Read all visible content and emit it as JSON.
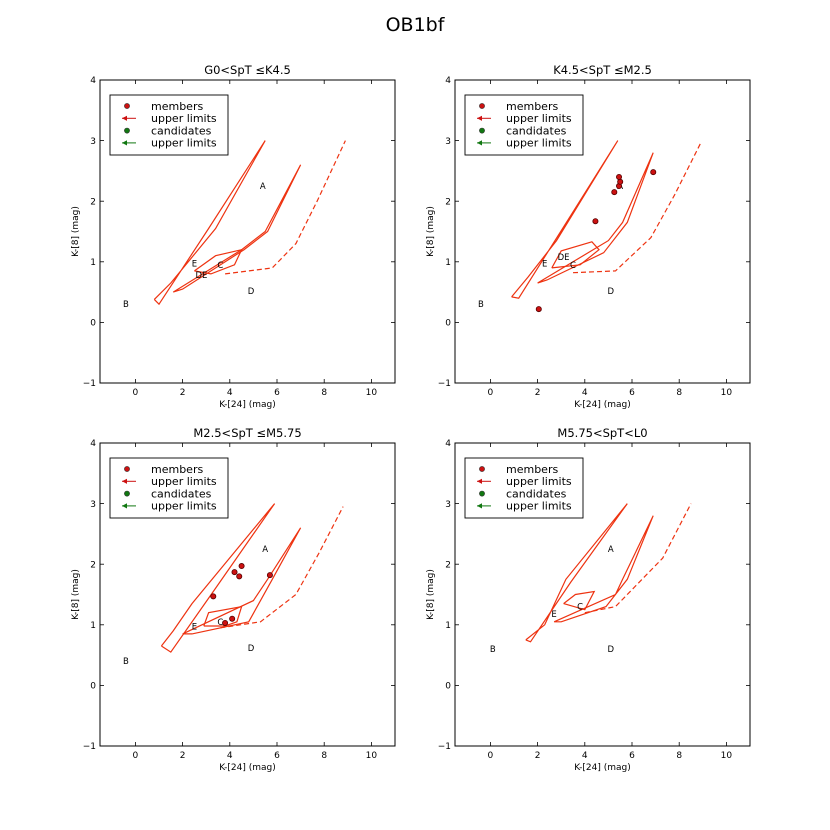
{
  "figure": {
    "suptitle": "OB1bf"
  },
  "colors": {
    "member": "#cc1111",
    "member_edge": "#550000",
    "model": "#ee3311",
    "candidate": "#117711",
    "axis": "#000000"
  },
  "legend": [
    {
      "label": "members",
      "marker": "dot",
      "color": "#cc1111"
    },
    {
      "label": "upper limits",
      "marker": "arrow",
      "color": "#cc1111"
    },
    {
      "label": "candidates",
      "marker": "dot",
      "color": "#117711"
    },
    {
      "label": "upper limits",
      "marker": "arrow",
      "color": "#117711"
    }
  ],
  "chart_data": [
    {
      "type": "scatter",
      "title": "G0<SpT ≤K4.5",
      "xlabel": "K-[24] (mag)",
      "ylabel": "K-[8] (mag)",
      "xlim": [
        -1.5,
        11
      ],
      "ylim": [
        -1,
        4
      ],
      "xticks": [
        0,
        2,
        4,
        6,
        8,
        10
      ],
      "yticks": [
        -1,
        0,
        1,
        2,
        3,
        4
      ],
      "legend_position": "upper left",
      "members": [],
      "regions": [
        {
          "label": "A",
          "x": 5.4,
          "y": 2.25
        },
        {
          "label": "B",
          "x": -0.4,
          "y": 0.3
        },
        {
          "label": "C",
          "x": 3.6,
          "y": 0.95
        },
        {
          "label": "D",
          "x": 4.9,
          "y": 0.52
        },
        {
          "label": "E",
          "x": 2.5,
          "y": 0.97
        },
        {
          "label": "DE",
          "x": 2.8,
          "y": 0.78
        }
      ],
      "models": {
        "thick_disk": [
          [
            0.8,
            0.38
          ],
          [
            1.5,
            0.65
          ],
          [
            3.4,
            1.55
          ],
          [
            5.5,
            3.0
          ],
          [
            3.1,
            1.55
          ],
          [
            1.0,
            0.3
          ],
          [
            0.8,
            0.38
          ]
        ],
        "thin_disk": [
          [
            1.6,
            0.5
          ],
          [
            4.5,
            1.2
          ],
          [
            5.5,
            1.5
          ],
          [
            7.0,
            2.6
          ],
          [
            5.6,
            1.5
          ],
          [
            4.6,
            1.2
          ],
          [
            2.0,
            0.55
          ],
          [
            1.6,
            0.5
          ]
        ],
        "transition": [
          [
            2.5,
            0.85
          ],
          [
            3.4,
            1.1
          ],
          [
            4.5,
            1.2
          ],
          [
            4.2,
            0.95
          ],
          [
            3.2,
            0.8
          ],
          [
            2.5,
            0.85
          ]
        ],
        "debris_dashed": [
          [
            3.8,
            0.8
          ],
          [
            5.8,
            0.9
          ],
          [
            6.8,
            1.3
          ],
          [
            7.7,
            2.0
          ],
          [
            8.9,
            3.0
          ]
        ]
      }
    },
    {
      "type": "scatter",
      "title": "K4.5<SpT ≤M2.5",
      "xlabel": "K-[24] (mag)",
      "ylabel": "K-[8] (mag)",
      "xlim": [
        -1.5,
        11
      ],
      "ylim": [
        -1,
        4
      ],
      "xticks": [
        0,
        2,
        4,
        6,
        8,
        10
      ],
      "yticks": [
        -1,
        0,
        1,
        2,
        3,
        4
      ],
      "legend_position": "upper left",
      "members": [
        {
          "x": 2.05,
          "y": 0.22
        },
        {
          "x": 4.45,
          "y": 1.67
        },
        {
          "x": 5.25,
          "y": 2.15
        },
        {
          "x": 5.45,
          "y": 2.25
        },
        {
          "x": 5.5,
          "y": 2.32
        },
        {
          "x": 5.45,
          "y": 2.4
        },
        {
          "x": 6.9,
          "y": 2.48
        }
      ],
      "regions": [
        {
          "label": "A",
          "x": 5.5,
          "y": 2.25
        },
        {
          "label": "B",
          "x": -0.4,
          "y": 0.3
        },
        {
          "label": "C",
          "x": 3.5,
          "y": 0.95
        },
        {
          "label": "D",
          "x": 5.1,
          "y": 0.52
        },
        {
          "label": "E",
          "x": 2.3,
          "y": 0.97
        },
        {
          "label": "DE",
          "x": 3.1,
          "y": 1.08
        }
      ],
      "models": {
        "thick_disk": [
          [
            0.9,
            0.42
          ],
          [
            1.6,
            0.75
          ],
          [
            2.8,
            1.35
          ],
          [
            5.4,
            3.0
          ],
          [
            3.3,
            1.7
          ],
          [
            1.2,
            0.4
          ],
          [
            0.9,
            0.42
          ]
        ],
        "thin_disk": [
          [
            2.0,
            0.65
          ],
          [
            5.0,
            1.35
          ],
          [
            5.6,
            1.65
          ],
          [
            6.9,
            2.8
          ],
          [
            5.8,
            1.65
          ],
          [
            4.8,
            1.15
          ],
          [
            2.4,
            0.7
          ],
          [
            2.0,
            0.65
          ]
        ],
        "transition": [
          [
            2.6,
            0.9
          ],
          [
            3.0,
            1.18
          ],
          [
            4.3,
            1.33
          ],
          [
            4.6,
            1.2
          ],
          [
            3.8,
            0.95
          ],
          [
            2.6,
            0.9
          ]
        ],
        "debris_dashed": [
          [
            3.5,
            0.82
          ],
          [
            5.3,
            0.85
          ],
          [
            6.8,
            1.4
          ],
          [
            7.8,
            2.1
          ],
          [
            8.9,
            2.95
          ]
        ]
      }
    },
    {
      "type": "scatter",
      "title": "M2.5<SpT ≤M5.75",
      "xlabel": "K-[24] (mag)",
      "ylabel": "K-[8] (mag)",
      "xlim": [
        -1.5,
        11
      ],
      "ylim": [
        -1,
        4
      ],
      "xticks": [
        0,
        2,
        4,
        6,
        8,
        10
      ],
      "yticks": [
        -1,
        0,
        1,
        2,
        3,
        4
      ],
      "legend_position": "upper left",
      "members": [
        {
          "x": 3.3,
          "y": 1.47
        },
        {
          "x": 3.8,
          "y": 1.03
        },
        {
          "x": 4.1,
          "y": 1.1
        },
        {
          "x": 4.2,
          "y": 1.87
        },
        {
          "x": 4.4,
          "y": 1.8
        },
        {
          "x": 4.5,
          "y": 1.97
        },
        {
          "x": 5.7,
          "y": 1.82
        }
      ],
      "regions": [
        {
          "label": "A",
          "x": 5.5,
          "y": 2.25
        },
        {
          "label": "B",
          "x": -0.4,
          "y": 0.4
        },
        {
          "label": "C",
          "x": 3.6,
          "y": 1.05
        },
        {
          "label": "D",
          "x": 4.9,
          "y": 0.62
        },
        {
          "label": "E",
          "x": 2.5,
          "y": 0.97
        }
      ],
      "models": {
        "thick_disk": [
          [
            1.1,
            0.65
          ],
          [
            1.6,
            0.9
          ],
          [
            2.4,
            1.35
          ],
          [
            5.9,
            3.0
          ],
          [
            3.3,
            1.55
          ],
          [
            1.5,
            0.55
          ],
          [
            1.1,
            0.65
          ]
        ],
        "thin_disk": [
          [
            2.0,
            0.85
          ],
          [
            5.0,
            1.4
          ],
          [
            5.6,
            1.75
          ],
          [
            7.0,
            2.6
          ],
          [
            5.8,
            1.75
          ],
          [
            4.8,
            1.05
          ],
          [
            2.4,
            0.85
          ],
          [
            2.0,
            0.85
          ]
        ],
        "transition": [
          [
            2.9,
            0.98
          ],
          [
            3.1,
            1.2
          ],
          [
            4.5,
            1.3
          ],
          [
            4.3,
            1.05
          ],
          [
            3.8,
            0.98
          ],
          [
            2.9,
            0.98
          ]
        ],
        "debris_dashed": [
          [
            3.6,
            0.95
          ],
          [
            5.3,
            1.05
          ],
          [
            6.8,
            1.5
          ],
          [
            7.8,
            2.2
          ],
          [
            8.8,
            2.95
          ]
        ]
      }
    },
    {
      "type": "scatter",
      "title": "M5.75<SpT<L0",
      "xlabel": "K-[24] (mag)",
      "ylabel": "K-[8] (mag)",
      "xlim": [
        -1.5,
        11
      ],
      "ylim": [
        -1,
        4
      ],
      "xticks": [
        0,
        2,
        4,
        6,
        8,
        10
      ],
      "yticks": [
        -1,
        0,
        1,
        2,
        3,
        4
      ],
      "legend_position": "upper left",
      "members": [],
      "regions": [
        {
          "label": "A",
          "x": 5.1,
          "y": 2.25
        },
        {
          "label": "B",
          "x": 0.1,
          "y": 0.6
        },
        {
          "label": "C",
          "x": 3.8,
          "y": 1.3
        },
        {
          "label": "D",
          "x": 5.1,
          "y": 0.6
        },
        {
          "label": "E",
          "x": 2.7,
          "y": 1.18
        }
      ],
      "models": {
        "thick_disk": [
          [
            1.5,
            0.75
          ],
          [
            2.3,
            1.0
          ],
          [
            3.2,
            1.75
          ],
          [
            5.8,
            3.0
          ],
          [
            3.4,
            1.7
          ],
          [
            1.7,
            0.72
          ],
          [
            1.5,
            0.75
          ]
        ],
        "thin_disk": [
          [
            2.7,
            1.05
          ],
          [
            5.3,
            1.5
          ],
          [
            5.6,
            1.75
          ],
          [
            6.9,
            2.8
          ],
          [
            5.8,
            1.75
          ],
          [
            4.9,
            1.3
          ],
          [
            3.0,
            1.05
          ],
          [
            2.7,
            1.05
          ]
        ],
        "transition": [
          [
            3.1,
            1.35
          ],
          [
            3.6,
            1.5
          ],
          [
            4.4,
            1.55
          ],
          [
            4.0,
            1.25
          ],
          [
            3.1,
            1.35
          ]
        ],
        "debris_dashed": [
          [
            4.0,
            1.2
          ],
          [
            5.3,
            1.3
          ],
          [
            7.3,
            2.1
          ],
          [
            8.5,
            3.0
          ]
        ]
      }
    }
  ]
}
